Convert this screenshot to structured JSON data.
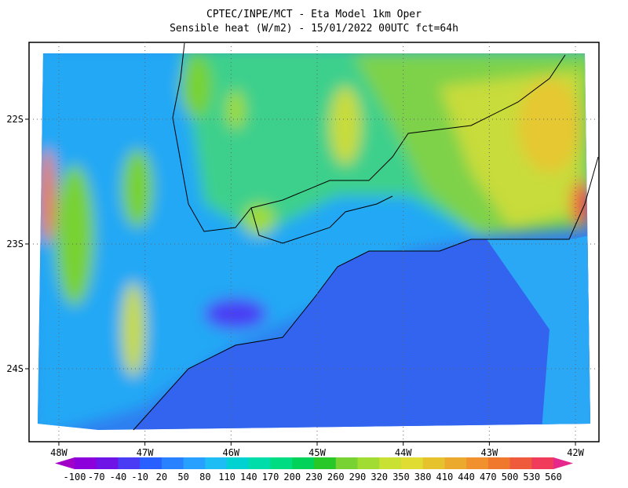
{
  "chart_data": {
    "type": "map",
    "title": "CPTEC/INPE/MCT -  Eta Model 1km Oper",
    "subtitle": "Sensible heat (W/m2) - 15/01/2022 00UTC fct=64h",
    "xlim": [
      -48.346,
      -41.727
    ],
    "ylim": [
      -24.585,
      -21.384
    ],
    "xticks": [
      {
        "value": -48,
        "label": "48W"
      },
      {
        "value": -47,
        "label": "47W"
      },
      {
        "value": -46,
        "label": "46W"
      },
      {
        "value": -45,
        "label": "45W"
      },
      {
        "value": -44,
        "label": "44W"
      },
      {
        "value": -43,
        "label": "43W"
      },
      {
        "value": -42,
        "label": "42W"
      }
    ],
    "yticks": [
      {
        "value": -22,
        "label": "22S"
      },
      {
        "value": -23,
        "label": "23S"
      },
      {
        "value": -24,
        "label": "24S"
      }
    ],
    "grid": true,
    "colorbar": {
      "levels": [
        -100,
        -70,
        -40,
        -10,
        20,
        50,
        80,
        110,
        140,
        170,
        200,
        230,
        260,
        290,
        320,
        350,
        380,
        410,
        440,
        470,
        500,
        530,
        560
      ],
      "colors": [
        "#a000c8",
        "#8c00dc",
        "#6e14e6",
        "#4a3cf5",
        "#2860ff",
        "#2882ff",
        "#28a0ff",
        "#1ebef5",
        "#00d2d2",
        "#00dcaa",
        "#00dc82",
        "#00d25a",
        "#28c828",
        "#78d232",
        "#a0dc32",
        "#c8e132",
        "#e1dc32",
        "#e6c32d",
        "#ebaa2d",
        "#f0912d",
        "#f0782d",
        "#f05a3c",
        "#f03c5a",
        "#e6288c"
      ]
    }
  }
}
